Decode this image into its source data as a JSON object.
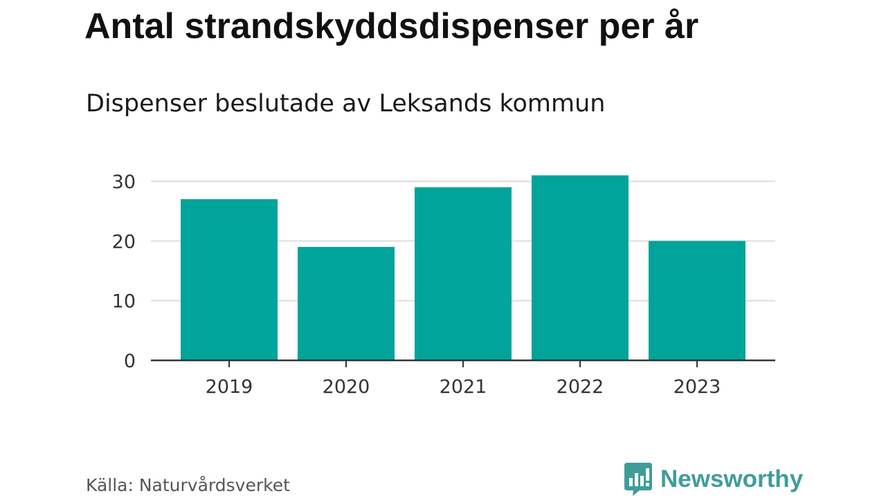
{
  "brand": {
    "bar_color": "#00a49a",
    "logo_color": "#3e9d9a",
    "logo_text": "Newsworthy"
  },
  "source": "Källa: Naturvårdsverket",
  "chart_data": {
    "type": "bar",
    "title": "Antal strandskyddsdispenser per år",
    "subtitle": "Dispenser beslutade av Leksands kommun",
    "categories": [
      "2019",
      "2020",
      "2021",
      "2022",
      "2023"
    ],
    "values": [
      27,
      19,
      29,
      31,
      20
    ],
    "yticks": [
      0,
      10,
      20,
      30
    ],
    "ylim": [
      0,
      32
    ],
    "xlabel": "",
    "ylabel": "",
    "grid": true
  }
}
